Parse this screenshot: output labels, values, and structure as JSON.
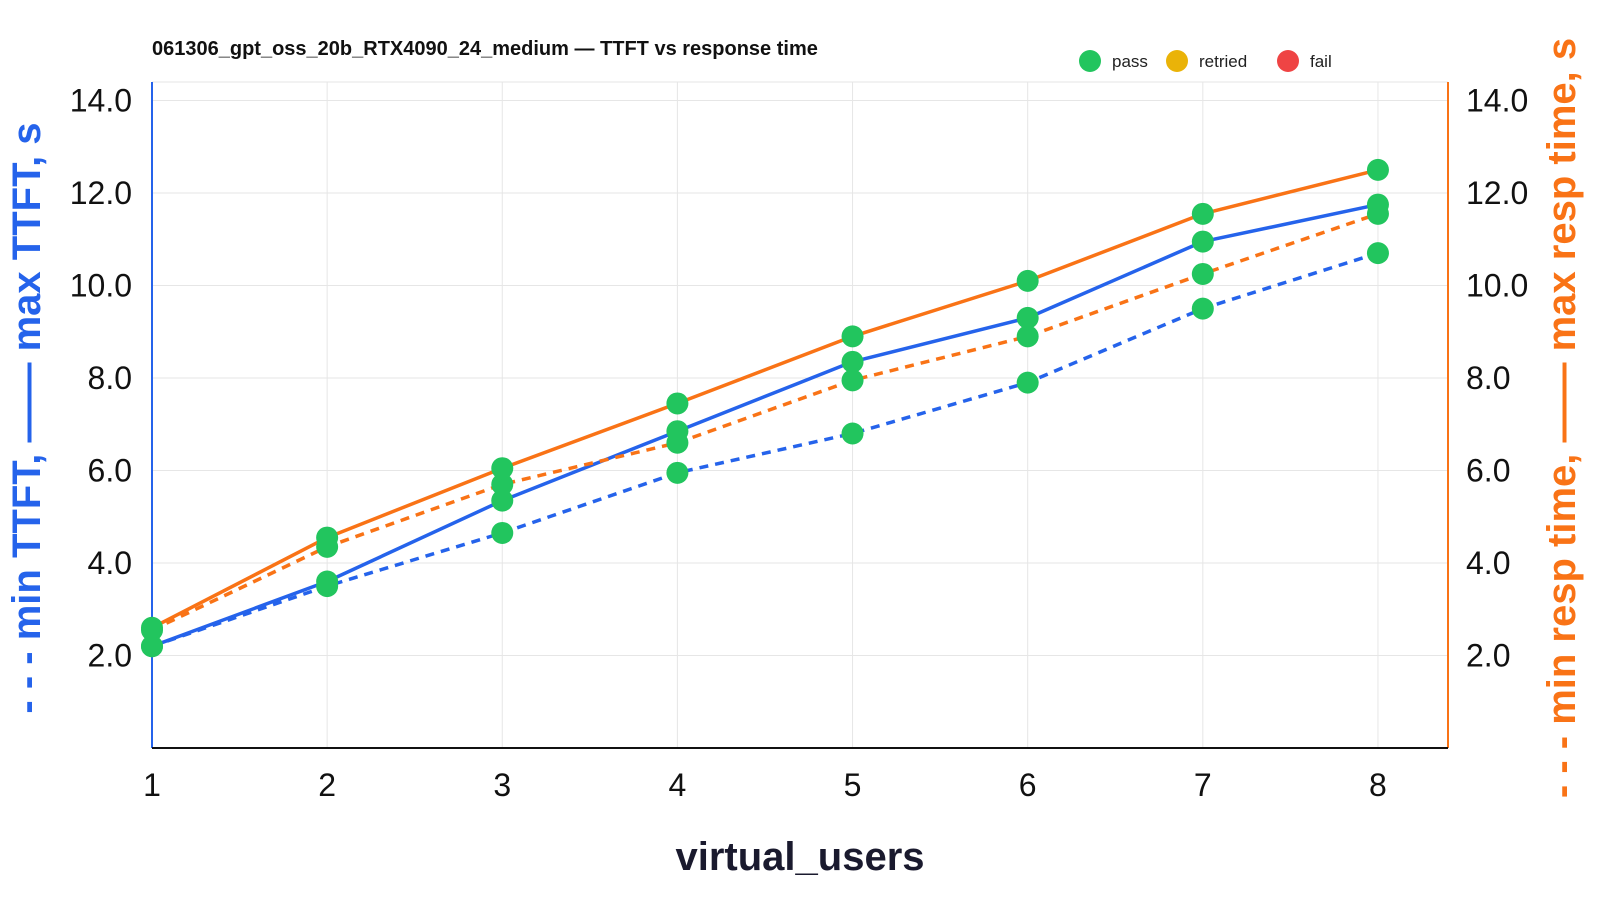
{
  "chart_data": {
    "type": "line",
    "title": "061306_gpt_oss_20b_RTX4090_24_medium — TTFT vs response time",
    "xlabel": "virtual_users",
    "ylabel_left": "- - - min TTFT, —— max TTFT, s",
    "ylabel_right": "- - - min resp time, —— max resp time, s",
    "x": [
      1,
      2,
      3,
      4,
      5,
      6,
      7,
      8
    ],
    "x_tick_labels": [
      "1",
      "2",
      "3",
      "4",
      "5",
      "6",
      "7",
      "8"
    ],
    "xlim": [
      1,
      8.4
    ],
    "ylim": [
      0,
      14.4
    ],
    "y_ticks": [
      2.0,
      4.0,
      6.0,
      8.0,
      10.0,
      12.0,
      14.0
    ],
    "y_tick_labels": [
      "2.0",
      "4.0",
      "6.0",
      "8.0",
      "10.0",
      "12.0",
      "14.0"
    ],
    "grid": true,
    "legend_position": "top-right",
    "legend": [
      {
        "label": "pass",
        "color": "#22c55e"
      },
      {
        "label": "retried",
        "color": "#eab308"
      },
      {
        "label": "fail",
        "color": "#ef4444"
      }
    ],
    "series": [
      {
        "name": "min TTFT",
        "axis": "left",
        "style": "dashed",
        "color": "#2563eb",
        "values": [
          2.2,
          3.5,
          4.65,
          5.95,
          6.8,
          7.9,
          9.5,
          10.7
        ]
      },
      {
        "name": "max TTFT",
        "axis": "left",
        "style": "solid",
        "color": "#2563eb",
        "values": [
          2.2,
          3.6,
          5.35,
          6.85,
          8.35,
          9.3,
          10.95,
          11.75
        ]
      },
      {
        "name": "min resp time",
        "axis": "right",
        "style": "dashed",
        "color": "#f97316",
        "values": [
          2.55,
          4.35,
          5.7,
          6.6,
          7.95,
          8.9,
          10.25,
          11.55
        ]
      },
      {
        "name": "max resp time",
        "axis": "right",
        "style": "solid",
        "color": "#f97316",
        "values": [
          2.6,
          4.55,
          6.05,
          7.45,
          8.9,
          10.1,
          11.55,
          12.5
        ]
      }
    ],
    "point_status_color": "#22c55e"
  }
}
